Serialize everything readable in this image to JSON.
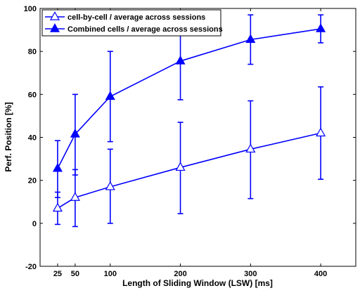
{
  "chart_data": {
    "type": "line",
    "title": "",
    "xlabel": "Length of Sliding Window (LSW) [ms]",
    "ylabel": "Perf. Position [%]",
    "xlim": [
      0,
      450
    ],
    "ylim": [
      -20,
      100
    ],
    "xticks": [
      25,
      50,
      100,
      200,
      300,
      400
    ],
    "yticks": [
      -20,
      0,
      20,
      40,
      60,
      80,
      100
    ],
    "grid": false,
    "legend_position": "top-left",
    "line_color": "#0000ff",
    "series": [
      {
        "name": "cell-by-cell / average across sessions",
        "marker": "triangle-open",
        "x": [
          25,
          50,
          100,
          200,
          300,
          400
        ],
        "y": [
          7,
          12,
          17,
          26,
          34.5,
          42
        ],
        "err_low": [
          -0.5,
          -1.5,
          0,
          4.5,
          11.5,
          20.5
        ],
        "err_high": [
          14.5,
          25,
          34.5,
          47,
          57,
          63.5
        ]
      },
      {
        "name": "Combined cells / average across sessions",
        "marker": "triangle-filled",
        "x": [
          25,
          50,
          100,
          200,
          300,
          400
        ],
        "y": [
          25.5,
          41.5,
          59,
          75.5,
          85.5,
          90.5
        ],
        "err_low": [
          12,
          22.5,
          38,
          57.5,
          74,
          84
        ],
        "err_high": [
          38.5,
          60,
          80,
          94,
          97,
          97
        ]
      }
    ]
  }
}
